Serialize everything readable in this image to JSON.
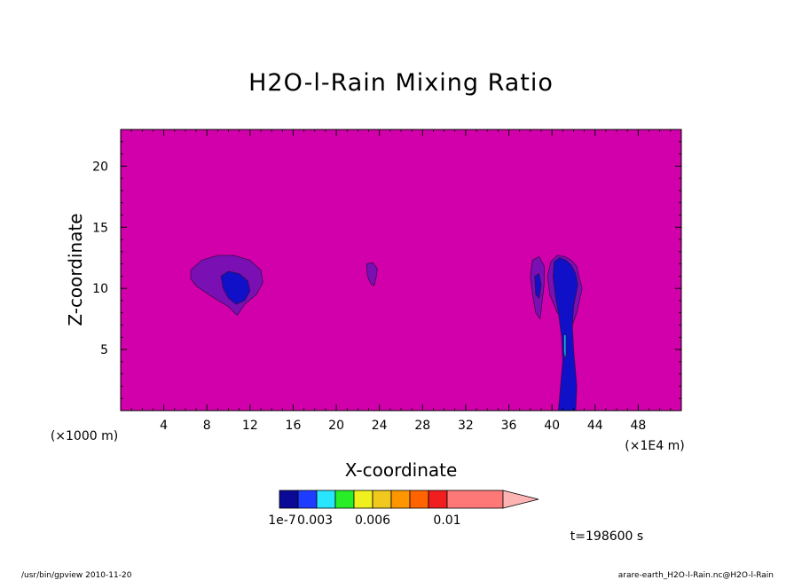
{
  "chart_data": {
    "type": "heatmap",
    "title": "H2O-l-Rain Mixing Ratio",
    "xlabel": "X-coordinate",
    "ylabel": "Z-coordinate",
    "x_unit_left": "(×1000 m)",
    "x_unit_right": "(×1E4 m)",
    "xlim": [
      0,
      52
    ],
    "ylim": [
      0,
      23
    ],
    "x_ticks": [
      4,
      8,
      12,
      16,
      20,
      24,
      28,
      32,
      36,
      40,
      44,
      48
    ],
    "y_ticks": [
      5,
      10,
      15,
      20
    ],
    "background_color": "#d200aa",
    "features": [
      {
        "level": "outer",
        "color": "#7a10b4",
        "points": [
          [
            6.5,
            11.5
          ],
          [
            7.5,
            12.3
          ],
          [
            9,
            12.7
          ],
          [
            10.5,
            12.7
          ],
          [
            12,
            12.3
          ],
          [
            13,
            11.5
          ],
          [
            13.2,
            10.5
          ],
          [
            12.6,
            9.5
          ],
          [
            11.5,
            8.7
          ],
          [
            10.8,
            7.8
          ],
          [
            10,
            8.5
          ],
          [
            8.5,
            9.3
          ],
          [
            7,
            10.2
          ],
          [
            6.5,
            10.8
          ]
        ]
      },
      {
        "level": "inner",
        "color": "#1010c8",
        "points": [
          [
            9.3,
            11
          ],
          [
            10,
            11.4
          ],
          [
            11,
            11.2
          ],
          [
            11.8,
            10.6
          ],
          [
            12,
            9.8
          ],
          [
            11.5,
            9
          ],
          [
            10.7,
            8.7
          ],
          [
            10,
            9.2
          ],
          [
            9.5,
            10
          ]
        ]
      },
      {
        "level": "outer",
        "color": "#7a10b4",
        "points": [
          [
            22.8,
            12
          ],
          [
            23.4,
            12.1
          ],
          [
            23.8,
            11.6
          ],
          [
            23.7,
            10.9
          ],
          [
            23.5,
            10.2
          ],
          [
            23.2,
            10.4
          ],
          [
            22.9,
            11
          ]
        ]
      },
      {
        "level": "outer",
        "color": "#7a10b4",
        "points": [
          [
            38.2,
            12.3
          ],
          [
            38.8,
            12.6
          ],
          [
            39.3,
            11.8
          ],
          [
            39.3,
            10.5
          ],
          [
            39.1,
            9
          ],
          [
            38.9,
            7.5
          ],
          [
            38.5,
            8
          ],
          [
            38.2,
            9.5
          ],
          [
            38,
            11
          ]
        ]
      },
      {
        "level": "inner",
        "color": "#1010c8",
        "points": [
          [
            38.4,
            11
          ],
          [
            38.8,
            11.2
          ],
          [
            39,
            10.3
          ],
          [
            38.8,
            9.2
          ],
          [
            38.5,
            9.5
          ]
        ]
      },
      {
        "level": "outer",
        "color": "#7a10b4",
        "points": [
          [
            39.9,
            12.2
          ],
          [
            40.5,
            12.7
          ],
          [
            41.2,
            12.6
          ],
          [
            41.8,
            12.3
          ],
          [
            42.3,
            11.8
          ],
          [
            42.5,
            11
          ],
          [
            42.8,
            10
          ],
          [
            42.6,
            9.2
          ],
          [
            42.3,
            8
          ],
          [
            41.9,
            7
          ],
          [
            41.3,
            7.5
          ],
          [
            40.5,
            8
          ],
          [
            39.8,
            9.5
          ],
          [
            39.6,
            11
          ]
        ]
      },
      {
        "level": "inner",
        "color": "#1010c8",
        "points": [
          [
            40.2,
            12.2
          ],
          [
            40.7,
            12.5
          ],
          [
            41.3,
            12.3
          ],
          [
            41.8,
            11.9
          ],
          [
            42.2,
            11.2
          ],
          [
            42.4,
            10.3
          ],
          [
            42.2,
            9.4
          ],
          [
            42,
            8.5
          ],
          [
            41.9,
            7
          ],
          [
            42,
            5
          ],
          [
            42.3,
            2
          ],
          [
            42.2,
            0
          ],
          [
            40.6,
            0
          ],
          [
            40.8,
            2
          ],
          [
            41,
            4
          ],
          [
            40.9,
            6
          ],
          [
            40.6,
            8
          ],
          [
            40.3,
            9.5
          ],
          [
            40.1,
            11
          ]
        ]
      },
      {
        "level": "core",
        "color": "#00b4ff",
        "points": [
          [
            41.1,
            6.2
          ],
          [
            41.3,
            6.2
          ],
          [
            41.3,
            4.5
          ],
          [
            41.2,
            4.3
          ],
          [
            41.1,
            4.8
          ]
        ]
      }
    ],
    "colorbar": {
      "colors": [
        "#0a0a96",
        "#1e3cff",
        "#28e6ff",
        "#28ee28",
        "#f0f01e",
        "#f0c81e",
        "#ff9600",
        "#ff6400",
        "#f01e1e",
        "#ff7878"
      ],
      "extend_color": "#ffb4b4",
      "labels": [
        "1e-7",
        "0.003",
        "0.006",
        "0.01"
      ]
    },
    "time_label": "t=198600 s"
  },
  "footer": {
    "left": "/usr/bin/gpview  2010-11-20",
    "right": "arare-earth_H2O-l-Rain.nc@H2O-l-Rain"
  }
}
